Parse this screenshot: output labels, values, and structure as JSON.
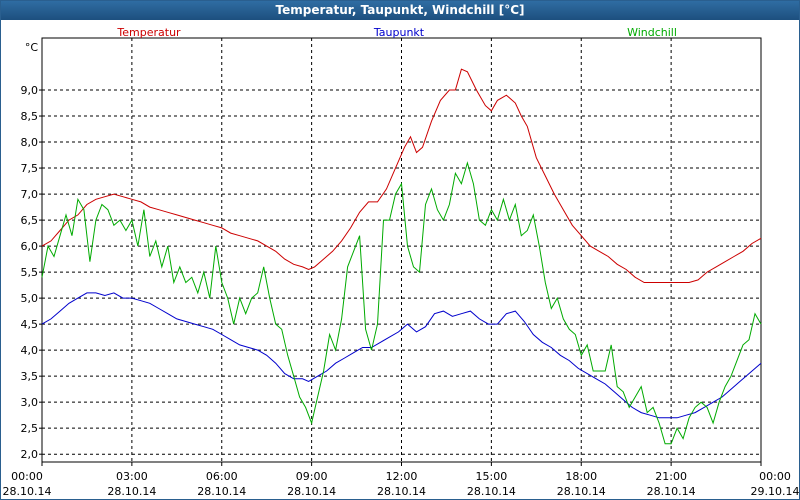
{
  "chart_data": {
    "type": "line",
    "title": "Temperatur, Taupunkt, Windchill [°C]",
    "ylabel": "°C",
    "ylim": [
      1.85,
      10.0
    ],
    "xlim": [
      0,
      24
    ],
    "grid": true,
    "legend_position": "top",
    "y_ticks": [
      "2,0",
      "2,5",
      "3,0",
      "3,5",
      "4,0",
      "4,5",
      "5,0",
      "5,5",
      "6,0",
      "6,5",
      "7,0",
      "7,5",
      "8,0",
      "8,5",
      "9,0"
    ],
    "x_ticks": [
      {
        "time": "00:00",
        "date": "28.10.14"
      },
      {
        "time": "03:00",
        "date": "28.10.14"
      },
      {
        "time": "06:00",
        "date": "28.10.14"
      },
      {
        "time": "09:00",
        "date": "28.10.14"
      },
      {
        "time": "12:00",
        "date": "28.10.14"
      },
      {
        "time": "15:00",
        "date": "28.10.14"
      },
      {
        "time": "18:00",
        "date": "28.10.14"
      },
      {
        "time": "21:00",
        "date": "28.10.14"
      },
      {
        "time": "00:00",
        "date": "29.10.14"
      }
    ],
    "series": [
      {
        "name": "Temperatur",
        "color": "#cc0000",
        "points": [
          [
            0,
            6.0
          ],
          [
            0.3,
            6.1
          ],
          [
            0.6,
            6.3
          ],
          [
            0.9,
            6.5
          ],
          [
            1.2,
            6.6
          ],
          [
            1.5,
            6.8
          ],
          [
            1.8,
            6.9
          ],
          [
            2.1,
            6.95
          ],
          [
            2.4,
            7.0
          ],
          [
            2.7,
            6.95
          ],
          [
            3.0,
            6.9
          ],
          [
            3.3,
            6.85
          ],
          [
            3.6,
            6.75
          ],
          [
            3.9,
            6.7
          ],
          [
            4.2,
            6.65
          ],
          [
            4.5,
            6.6
          ],
          [
            4.8,
            6.55
          ],
          [
            5.1,
            6.5
          ],
          [
            5.4,
            6.45
          ],
          [
            5.7,
            6.4
          ],
          [
            6.0,
            6.35
          ],
          [
            6.3,
            6.25
          ],
          [
            6.6,
            6.2
          ],
          [
            6.9,
            6.15
          ],
          [
            7.2,
            6.1
          ],
          [
            7.5,
            6.0
          ],
          [
            7.8,
            5.9
          ],
          [
            8.1,
            5.75
          ],
          [
            8.4,
            5.65
          ],
          [
            8.7,
            5.6
          ],
          [
            8.9,
            5.55
          ],
          [
            9.1,
            5.6
          ],
          [
            9.4,
            5.75
          ],
          [
            9.7,
            5.9
          ],
          [
            10.0,
            6.1
          ],
          [
            10.3,
            6.35
          ],
          [
            10.6,
            6.65
          ],
          [
            10.9,
            6.85
          ],
          [
            11.2,
            6.85
          ],
          [
            11.5,
            7.1
          ],
          [
            11.8,
            7.5
          ],
          [
            12.1,
            7.9
          ],
          [
            12.3,
            8.1
          ],
          [
            12.5,
            7.8
          ],
          [
            12.7,
            7.9
          ],
          [
            13.0,
            8.4
          ],
          [
            13.3,
            8.8
          ],
          [
            13.6,
            9.0
          ],
          [
            13.8,
            9.0
          ],
          [
            14.0,
            9.4
          ],
          [
            14.2,
            9.35
          ],
          [
            14.5,
            9.0
          ],
          [
            14.8,
            8.7
          ],
          [
            15.0,
            8.6
          ],
          [
            15.2,
            8.8
          ],
          [
            15.5,
            8.9
          ],
          [
            15.8,
            8.75
          ],
          [
            16.0,
            8.5
          ],
          [
            16.2,
            8.3
          ],
          [
            16.5,
            7.7
          ],
          [
            16.8,
            7.35
          ],
          [
            17.1,
            7.0
          ],
          [
            17.4,
            6.7
          ],
          [
            17.7,
            6.4
          ],
          [
            18.0,
            6.2
          ],
          [
            18.3,
            6.0
          ],
          [
            18.6,
            5.9
          ],
          [
            18.9,
            5.8
          ],
          [
            19.2,
            5.65
          ],
          [
            19.5,
            5.55
          ],
          [
            19.8,
            5.4
          ],
          [
            20.1,
            5.3
          ],
          [
            20.4,
            5.3
          ],
          [
            20.7,
            5.3
          ],
          [
            21.0,
            5.3
          ],
          [
            21.3,
            5.3
          ],
          [
            21.6,
            5.3
          ],
          [
            21.9,
            5.35
          ],
          [
            22.2,
            5.5
          ],
          [
            22.5,
            5.6
          ],
          [
            22.8,
            5.7
          ],
          [
            23.1,
            5.8
          ],
          [
            23.4,
            5.9
          ],
          [
            23.7,
            6.05
          ],
          [
            24.0,
            6.15
          ]
        ]
      },
      {
        "name": "Taupunkt",
        "color": "#0000cc",
        "points": [
          [
            0,
            4.5
          ],
          [
            0.3,
            4.6
          ],
          [
            0.6,
            4.75
          ],
          [
            0.9,
            4.9
          ],
          [
            1.2,
            5.0
          ],
          [
            1.5,
            5.1
          ],
          [
            1.8,
            5.1
          ],
          [
            2.1,
            5.05
          ],
          [
            2.4,
            5.1
          ],
          [
            2.7,
            5.0
          ],
          [
            3.0,
            5.0
          ],
          [
            3.3,
            4.95
          ],
          [
            3.6,
            4.9
          ],
          [
            3.9,
            4.8
          ],
          [
            4.2,
            4.7
          ],
          [
            4.5,
            4.6
          ],
          [
            4.8,
            4.55
          ],
          [
            5.1,
            4.5
          ],
          [
            5.4,
            4.45
          ],
          [
            5.7,
            4.4
          ],
          [
            6.0,
            4.3
          ],
          [
            6.3,
            4.2
          ],
          [
            6.6,
            4.1
          ],
          [
            6.9,
            4.05
          ],
          [
            7.2,
            4.0
          ],
          [
            7.5,
            3.9
          ],
          [
            7.8,
            3.75
          ],
          [
            8.1,
            3.55
          ],
          [
            8.4,
            3.45
          ],
          [
            8.7,
            3.45
          ],
          [
            8.9,
            3.4
          ],
          [
            9.2,
            3.5
          ],
          [
            9.5,
            3.6
          ],
          [
            9.8,
            3.75
          ],
          [
            10.1,
            3.85
          ],
          [
            10.4,
            3.95
          ],
          [
            10.7,
            4.05
          ],
          [
            11.0,
            4.05
          ],
          [
            11.3,
            4.15
          ],
          [
            11.6,
            4.25
          ],
          [
            11.9,
            4.35
          ],
          [
            12.2,
            4.5
          ],
          [
            12.5,
            4.35
          ],
          [
            12.8,
            4.45
          ],
          [
            13.1,
            4.7
          ],
          [
            13.4,
            4.75
          ],
          [
            13.7,
            4.65
          ],
          [
            14.0,
            4.7
          ],
          [
            14.3,
            4.75
          ],
          [
            14.6,
            4.6
          ],
          [
            14.9,
            4.5
          ],
          [
            15.2,
            4.5
          ],
          [
            15.5,
            4.7
          ],
          [
            15.8,
            4.75
          ],
          [
            16.1,
            4.55
          ],
          [
            16.4,
            4.3
          ],
          [
            16.7,
            4.15
          ],
          [
            17.0,
            4.05
          ],
          [
            17.3,
            3.9
          ],
          [
            17.6,
            3.8
          ],
          [
            17.9,
            3.65
          ],
          [
            18.2,
            3.55
          ],
          [
            18.5,
            3.45
          ],
          [
            18.8,
            3.35
          ],
          [
            19.1,
            3.2
          ],
          [
            19.4,
            3.05
          ],
          [
            19.7,
            2.9
          ],
          [
            20.0,
            2.8
          ],
          [
            20.3,
            2.75
          ],
          [
            20.6,
            2.7
          ],
          [
            20.9,
            2.7
          ],
          [
            21.2,
            2.7
          ],
          [
            21.5,
            2.75
          ],
          [
            21.8,
            2.8
          ],
          [
            22.1,
            2.9
          ],
          [
            22.4,
            3.0
          ],
          [
            22.7,
            3.1
          ],
          [
            23.0,
            3.25
          ],
          [
            23.3,
            3.4
          ],
          [
            23.6,
            3.55
          ],
          [
            24.0,
            3.75
          ]
        ]
      },
      {
        "name": "Windchill",
        "color": "#00aa00",
        "points": [
          [
            0,
            5.4
          ],
          [
            0.2,
            6.0
          ],
          [
            0.4,
            5.8
          ],
          [
            0.6,
            6.2
          ],
          [
            0.8,
            6.6
          ],
          [
            1.0,
            6.2
          ],
          [
            1.2,
            6.9
          ],
          [
            1.4,
            6.7
          ],
          [
            1.6,
            5.7
          ],
          [
            1.8,
            6.5
          ],
          [
            2.0,
            6.8
          ],
          [
            2.2,
            6.7
          ],
          [
            2.4,
            6.4
          ],
          [
            2.6,
            6.5
          ],
          [
            2.8,
            6.3
          ],
          [
            3.0,
            6.5
          ],
          [
            3.2,
            6.0
          ],
          [
            3.4,
            6.7
          ],
          [
            3.6,
            5.8
          ],
          [
            3.8,
            6.1
          ],
          [
            4.0,
            5.6
          ],
          [
            4.2,
            6.0
          ],
          [
            4.4,
            5.3
          ],
          [
            4.6,
            5.6
          ],
          [
            4.8,
            5.3
          ],
          [
            5.0,
            5.4
          ],
          [
            5.2,
            5.1
          ],
          [
            5.4,
            5.5
          ],
          [
            5.6,
            5.0
          ],
          [
            5.8,
            6.0
          ],
          [
            6.0,
            5.3
          ],
          [
            6.2,
            5.0
          ],
          [
            6.4,
            4.5
          ],
          [
            6.6,
            5.0
          ],
          [
            6.8,
            4.7
          ],
          [
            7.0,
            5.0
          ],
          [
            7.2,
            5.1
          ],
          [
            7.4,
            5.6
          ],
          [
            7.6,
            5.0
          ],
          [
            7.8,
            4.5
          ],
          [
            8.0,
            4.4
          ],
          [
            8.2,
            3.9
          ],
          [
            8.4,
            3.5
          ],
          [
            8.6,
            3.1
          ],
          [
            8.8,
            2.9
          ],
          [
            9.0,
            2.6
          ],
          [
            9.2,
            3.1
          ],
          [
            9.4,
            3.6
          ],
          [
            9.6,
            4.3
          ],
          [
            9.8,
            4.0
          ],
          [
            10.0,
            4.6
          ],
          [
            10.2,
            5.6
          ],
          [
            10.4,
            5.9
          ],
          [
            10.6,
            6.2
          ],
          [
            10.8,
            4.4
          ],
          [
            11.0,
            4.0
          ],
          [
            11.2,
            4.5
          ],
          [
            11.4,
            6.5
          ],
          [
            11.6,
            6.5
          ],
          [
            11.8,
            7.0
          ],
          [
            12.0,
            7.2
          ],
          [
            12.2,
            6.0
          ],
          [
            12.4,
            5.6
          ],
          [
            12.6,
            5.5
          ],
          [
            12.8,
            6.8
          ],
          [
            13.0,
            7.1
          ],
          [
            13.2,
            6.7
          ],
          [
            13.4,
            6.5
          ],
          [
            13.6,
            6.8
          ],
          [
            13.8,
            7.4
          ],
          [
            14.0,
            7.2
          ],
          [
            14.2,
            7.6
          ],
          [
            14.4,
            7.2
          ],
          [
            14.6,
            6.5
          ],
          [
            14.8,
            6.4
          ],
          [
            15.0,
            6.7
          ],
          [
            15.2,
            6.5
          ],
          [
            15.4,
            6.9
          ],
          [
            15.6,
            6.5
          ],
          [
            15.8,
            6.8
          ],
          [
            16.0,
            6.2
          ],
          [
            16.2,
            6.3
          ],
          [
            16.4,
            6.6
          ],
          [
            16.6,
            6.0
          ],
          [
            16.8,
            5.3
          ],
          [
            17.0,
            4.8
          ],
          [
            17.2,
            5.0
          ],
          [
            17.4,
            4.6
          ],
          [
            17.6,
            4.4
          ],
          [
            17.8,
            4.3
          ],
          [
            18.0,
            3.9
          ],
          [
            18.2,
            4.1
          ],
          [
            18.4,
            3.6
          ],
          [
            18.6,
            3.6
          ],
          [
            18.8,
            3.6
          ],
          [
            19.0,
            4.1
          ],
          [
            19.2,
            3.3
          ],
          [
            19.4,
            3.2
          ],
          [
            19.6,
            2.9
          ],
          [
            19.8,
            3.1
          ],
          [
            20.0,
            3.3
          ],
          [
            20.2,
            2.8
          ],
          [
            20.4,
            2.9
          ],
          [
            20.6,
            2.6
          ],
          [
            20.8,
            2.2
          ],
          [
            21.0,
            2.2
          ],
          [
            21.2,
            2.5
          ],
          [
            21.4,
            2.3
          ],
          [
            21.6,
            2.7
          ],
          [
            21.8,
            2.9
          ],
          [
            22.0,
            3.0
          ],
          [
            22.2,
            2.9
          ],
          [
            22.4,
            2.6
          ],
          [
            22.6,
            3.0
          ],
          [
            22.8,
            3.3
          ],
          [
            23.0,
            3.5
          ],
          [
            23.2,
            3.8
          ],
          [
            23.4,
            4.1
          ],
          [
            23.6,
            4.2
          ],
          [
            23.8,
            4.7
          ],
          [
            24.0,
            4.5
          ]
        ]
      }
    ]
  }
}
